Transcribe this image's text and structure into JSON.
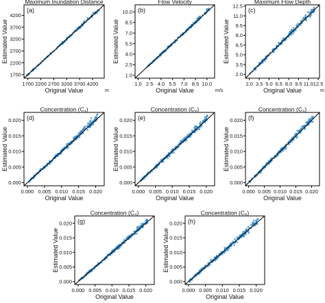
{
  "chart_data": [
    {
      "panel": "(a)",
      "type": "scatter",
      "title": "Maximum Inundation Distance",
      "xlabel": "Original Value",
      "ylabel": "Estimated Value",
      "unit": "m",
      "xlim": [
        1550,
        4650
      ],
      "ylim": [
        1550,
        4650
      ],
      "xticks": [
        1700,
        2200,
        2700,
        3200,
        3700,
        4200
      ],
      "xtick_labels": [
        "1700",
        "2200",
        "2700",
        "3200",
        "3700",
        "4200"
      ],
      "yticks": [
        1700,
        2200,
        2700,
        3200,
        3700,
        4200
      ],
      "ytick_labels": [
        "1700",
        "2200",
        "2700",
        "3200",
        "3700",
        "4200"
      ],
      "reference_line": "y = x",
      "point_color": "#3b8fd1",
      "line_color": "#000000",
      "spread": 0.025,
      "upper_bias": 0.0,
      "n_points": 150,
      "range": [
        1650,
        4450
      ]
    },
    {
      "panel": "(b)",
      "type": "scatter",
      "title": "Flow Velocity",
      "xlabel": "Original Value",
      "ylabel": "Estimated Value",
      "unit": "m/s",
      "xlim": [
        0.6,
        11.0
      ],
      "ylim": [
        0.6,
        11.0
      ],
      "xticks": [
        1.0,
        2.5,
        4.0,
        5.5,
        7.0,
        8.5,
        10.0
      ],
      "xtick_labels": [
        "1.0",
        "2.5",
        "4.0",
        "5.5",
        "7.0",
        "8.5",
        "10.0"
      ],
      "yticks": [
        1.0,
        2.5,
        4.0,
        5.5,
        7.0,
        8.5,
        10.0
      ],
      "ytick_labels": [
        "1.0",
        "2.5",
        "4.0",
        "5.5",
        "7.0",
        "8.5",
        "10.0"
      ],
      "reference_line": "y = x",
      "point_color": "#3b8fd1",
      "line_color": "#000000",
      "spread": 0.035,
      "upper_bias": 0.03,
      "n_points": 160,
      "range": [
        2.0,
        10.3
      ]
    },
    {
      "panel": "(c)",
      "type": "scatter",
      "title": "Maximum Flow Depth",
      "xlabel": "Original Value",
      "ylabel": "Estimated Value",
      "unit": "m",
      "xlim": [
        1.4,
        12.7
      ],
      "ylim": [
        1.4,
        12.7
      ],
      "xticks": [
        2.0,
        3.5,
        5.0,
        6.5,
        8.0,
        9.5,
        11.0,
        12.5
      ],
      "xtick_labels": [
        "2.0",
        "3.5",
        "5.0",
        "6.5",
        "8.0",
        "9.5",
        "11.0",
        "12.5"
      ],
      "yticks": [
        2.0,
        3.5,
        5.0,
        6.5,
        8.0,
        9.5,
        11.0,
        12.5
      ],
      "ytick_labels": [
        "2.0",
        "3.5",
        "5.0",
        "6.5",
        "8.0",
        "9.5",
        "11.0",
        "12.5"
      ],
      "reference_line": "y = x",
      "point_color": "#3b8fd1",
      "line_color": "#000000",
      "spread": 0.05,
      "upper_bias": 0.02,
      "n_points": 170,
      "range": [
        2.0,
        12.0
      ]
    },
    {
      "panel": "(d)",
      "type": "scatter",
      "title": "Concentration (C₁)",
      "xlabel": "Original Value",
      "ylabel": "Estimated Value",
      "xlim": [
        -0.001,
        0.0225
      ],
      "ylim": [
        -0.001,
        0.0225
      ],
      "xticks": [
        0.0,
        0.005,
        0.01,
        0.015,
        0.02
      ],
      "xtick_labels": [
        "0.000",
        "0.005",
        "0.010",
        "0.015",
        "0.020"
      ],
      "yticks": [
        0.0,
        0.005,
        0.01,
        0.015,
        0.02
      ],
      "ytick_labels": [
        "0.000",
        "0.005",
        "0.010",
        "0.015",
        "0.020"
      ],
      "reference_line": "y = x",
      "point_color": "#3b8fd1",
      "line_color": "#000000",
      "spread": 0.05,
      "upper_bias": 0.06,
      "n_points": 220,
      "range": [
        0.0002,
        0.0205
      ]
    },
    {
      "panel": "(e)",
      "type": "scatter",
      "title": "Concentration (C₂)",
      "xlabel": "Original Value",
      "ylabel": "Estimated Value",
      "xlim": [
        -0.001,
        0.0225
      ],
      "ylim": [
        -0.001,
        0.0225
      ],
      "xticks": [
        0.0,
        0.005,
        0.01,
        0.015,
        0.02
      ],
      "xtick_labels": [
        "0.000",
        "0.005",
        "0.010",
        "0.015",
        "0.020"
      ],
      "yticks": [
        0.0,
        0.005,
        0.01,
        0.015,
        0.02
      ],
      "ytick_labels": [
        "0.000",
        "0.005",
        "0.010",
        "0.015",
        "0.020"
      ],
      "reference_line": "y = x",
      "point_color": "#3b8fd1",
      "line_color": "#000000",
      "spread": 0.05,
      "upper_bias": 0.05,
      "n_points": 220,
      "range": [
        0.0002,
        0.0205
      ]
    },
    {
      "panel": "(f)",
      "type": "scatter",
      "title": "Concentration (C₃)",
      "xlabel": "Original Value",
      "ylabel": "Estimated Value",
      "xlim": [
        -0.001,
        0.0225
      ],
      "ylim": [
        -0.001,
        0.0225
      ],
      "xticks": [
        0.0,
        0.005,
        0.01,
        0.015,
        0.02
      ],
      "xtick_labels": [
        "0.000",
        "0.005",
        "0.010",
        "0.015",
        "0.020"
      ],
      "yticks": [
        0.0,
        0.005,
        0.01,
        0.015,
        0.02
      ],
      "ytick_labels": [
        "0.000",
        "0.005",
        "0.010",
        "0.015",
        "0.020"
      ],
      "reference_line": "y = x",
      "point_color": "#3b8fd1",
      "line_color": "#000000",
      "spread": 0.05,
      "upper_bias": 0.04,
      "n_points": 220,
      "range": [
        0.0002,
        0.0205
      ]
    },
    {
      "panel": "(g)",
      "type": "scatter",
      "title": "Concentration (C₄)",
      "xlabel": "Original Value",
      "ylabel": "Estimated Value",
      "xlim": [
        -0.001,
        0.0225
      ],
      "ylim": [
        -0.001,
        0.0225
      ],
      "xticks": [
        0.0,
        0.005,
        0.01,
        0.015,
        0.02
      ],
      "xtick_labels": [
        "0.000",
        "0.005",
        "0.010",
        "0.015",
        "0.020"
      ],
      "yticks": [
        0.0,
        0.005,
        0.01,
        0.015,
        0.02
      ],
      "ytick_labels": [
        "0.000",
        "0.005",
        "0.010",
        "0.015",
        "0.020"
      ],
      "reference_line": "y = x",
      "point_color": "#3b8fd1",
      "line_color": "#000000",
      "spread": 0.05,
      "upper_bias": 0.03,
      "n_points": 220,
      "range": [
        0.0002,
        0.0205
      ]
    },
    {
      "panel": "(h)",
      "type": "scatter",
      "title": "Concentration (C₅)",
      "xlabel": "Original Value",
      "ylabel": "Estimated Value",
      "xlim": [
        -0.001,
        0.0225
      ],
      "ylim": [
        -0.001,
        0.0225
      ],
      "xticks": [
        0.0,
        0.005,
        0.01,
        0.015,
        0.02
      ],
      "xtick_labels": [
        "0.000",
        "0.005",
        "0.010",
        "0.015",
        "0.020"
      ],
      "yticks": [
        0.0,
        0.005,
        0.01,
        0.015,
        0.02
      ],
      "ytick_labels": [
        "0.000",
        "0.005",
        "0.010",
        "0.015",
        "0.020"
      ],
      "reference_line": "y = x",
      "point_color": "#3b8fd1",
      "line_color": "#000000",
      "spread": 0.06,
      "upper_bias": 0.04,
      "n_points": 220,
      "range": [
        0.0002,
        0.0205
      ]
    }
  ]
}
